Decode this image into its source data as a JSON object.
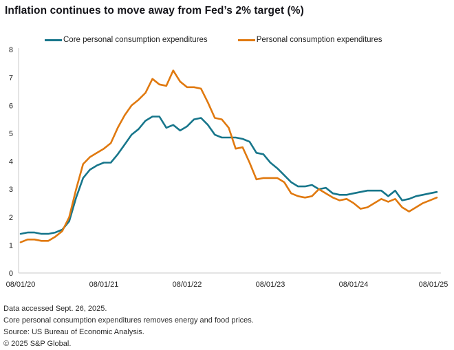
{
  "title": "Inflation continues to move away from Fed’s 2% target (%)",
  "legend": {
    "items": [
      {
        "label": "Core personal consumption expenditures",
        "color": "#17768B"
      },
      {
        "label": "Personal consumption expenditures",
        "color": "#E0790F"
      }
    ]
  },
  "footnotes": [
    "Data accessed Sept. 26, 2025.",
    "Core personal consumption expenditures removes energy and food prices.",
    "Source: US Bureau of Economic Analysis.",
    "© 2025 S&P Global."
  ],
  "colors": {
    "core_line": "#17768B",
    "headline_line": "#E0790F",
    "axis": "#c8c8c8",
    "tick_text": "#222222"
  },
  "chart_data": {
    "type": "line",
    "title": "Inflation continues to move away from Fed's 2% target (%)",
    "xlabel": "",
    "ylabel": "",
    "ylim": [
      0,
      8
    ],
    "y_ticks": [
      0,
      1,
      2,
      3,
      4,
      5,
      6,
      7,
      8
    ],
    "grid": false,
    "legend_position": "top",
    "x_start": "08/01/20",
    "x_frequency": "monthly",
    "x_tick_labels": [
      "08/01/20",
      "08/01/21",
      "08/01/22",
      "08/01/23",
      "08/01/24",
      "08/01/25"
    ],
    "series": [
      {
        "name": "Core personal consumption expenditures",
        "color": "#17768B",
        "values": [
          1.4,
          1.45,
          1.45,
          1.4,
          1.4,
          1.45,
          1.55,
          1.85,
          2.7,
          3.4,
          3.7,
          3.85,
          3.95,
          3.95,
          4.25,
          4.6,
          4.95,
          5.15,
          5.45,
          5.6,
          5.6,
          5.2,
          5.3,
          5.1,
          5.25,
          5.5,
          5.55,
          5.3,
          4.95,
          4.85,
          4.85,
          4.85,
          4.8,
          4.7,
          4.3,
          4.25,
          3.95,
          3.75,
          3.5,
          3.25,
          3.1,
          3.1,
          3.15,
          3.0,
          3.05,
          2.85,
          2.8,
          2.8,
          2.85,
          2.9,
          2.95,
          2.95,
          2.95,
          2.75,
          2.95,
          2.6,
          2.65,
          2.75,
          2.8,
          2.85,
          2.9
        ]
      },
      {
        "name": "Personal consumption expenditures",
        "color": "#E0790F",
        "values": [
          1.1,
          1.2,
          1.2,
          1.15,
          1.15,
          1.3,
          1.5,
          2.0,
          3.0,
          3.9,
          4.15,
          4.3,
          4.45,
          4.65,
          5.2,
          5.65,
          6.0,
          6.2,
          6.45,
          6.95,
          6.75,
          6.7,
          7.25,
          6.85,
          6.65,
          6.65,
          6.6,
          6.1,
          5.55,
          5.5,
          5.2,
          4.45,
          4.5,
          3.95,
          3.35,
          3.4,
          3.4,
          3.4,
          3.25,
          2.85,
          2.75,
          2.7,
          2.75,
          3.0,
          2.85,
          2.7,
          2.6,
          2.65,
          2.5,
          2.3,
          2.35,
          2.5,
          2.65,
          2.55,
          2.65,
          2.35,
          2.2,
          2.35,
          2.5,
          2.6,
          2.7
        ]
      }
    ]
  }
}
